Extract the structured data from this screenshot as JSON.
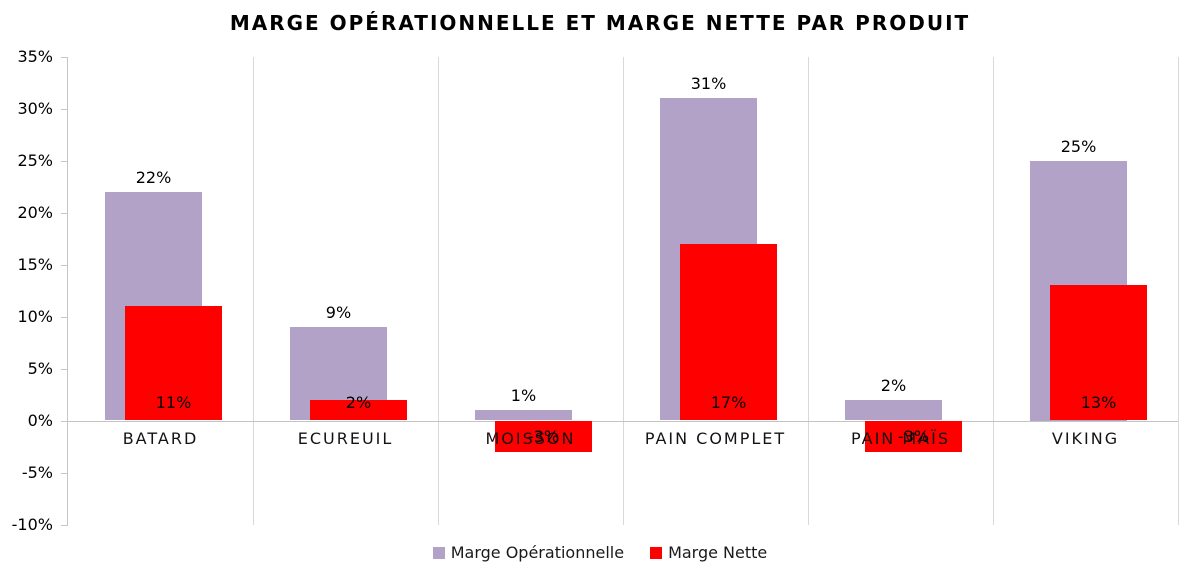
{
  "title": "MARGE OPÉRATIONNELLE ET MARGE NETTE PAR PRODUIT",
  "colors": {
    "marge_operationnelle": "#b3a2c7",
    "marge_nette": "#ff0000",
    "gridline": "#d9d9d9",
    "axis": "#c6c6c6",
    "text": "#000000"
  },
  "chart_data": {
    "type": "bar",
    "title": "MARGE OPÉRATIONNELLE ET MARGE NETTE PAR PRODUIT",
    "categories": [
      "BATARD",
      "ECUREUIL",
      "MOISSON",
      "PAIN COMPLET",
      "PAIN MAÏS",
      "VIKING"
    ],
    "series": [
      {
        "name": "Marge Opérationnelle",
        "color": "#b3a2c7",
        "values": [
          22,
          9,
          1,
          31,
          2,
          25
        ],
        "labels": [
          "22%",
          "9%",
          "1%",
          "31%",
          "2%",
          "25%"
        ],
        "label_position": "outside-end"
      },
      {
        "name": "Marge Nette",
        "color": "#ff0000",
        "values": [
          11,
          2,
          -3,
          17,
          -3,
          13
        ],
        "labels": [
          "11%",
          "2%",
          "-3%",
          "17%",
          "-3%",
          "13%"
        ],
        "label_position": "inside-base"
      }
    ],
    "xlabel": "",
    "ylabel": "",
    "ylim": [
      -10,
      35
    ],
    "ytick_step": 5,
    "ytick_labels": [
      "35%",
      "30%",
      "25%",
      "20%",
      "15%",
      "10%",
      "5%",
      "0%",
      "-5%",
      "-10%"
    ],
    "grid": "vertical-category-separators-only",
    "legend_position": "bottom"
  }
}
